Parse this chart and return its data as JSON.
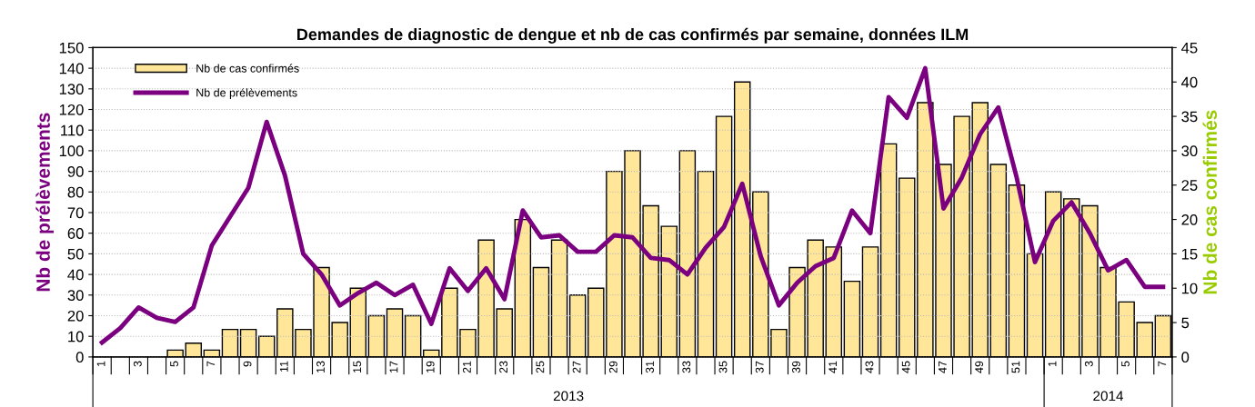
{
  "chart_data": {
    "type": "bar",
    "title": "Demandes de diagnostic de dengue et nb de cas confirmés par semaine, données ILM",
    "ylabel": "Nb de prélèvements",
    "y2label": "Nb de cas confirmés",
    "categories": [
      "1",
      null,
      "3",
      null,
      "5",
      null,
      "7",
      null,
      "9",
      null,
      "11",
      null,
      "13",
      null,
      "15",
      null,
      "17",
      null,
      "19",
      null,
      "21",
      null,
      "23",
      null,
      "25",
      null,
      "27",
      null,
      "29",
      null,
      "31",
      null,
      "33",
      null,
      "35",
      null,
      "37",
      null,
      "39",
      null,
      "41",
      null,
      "43",
      null,
      "45",
      null,
      "47",
      null,
      "49",
      null,
      "51",
      null,
      "1",
      null,
      "3",
      null,
      "5",
      null,
      "7"
    ],
    "series": [
      {
        "name": "Nb de cas confirmés",
        "axis": "y2",
        "color": "#ffe699",
        "values": [
          0,
          0,
          0,
          0,
          1,
          2,
          1,
          4,
          4,
          3,
          7,
          4,
          13,
          5,
          10,
          6,
          7,
          6,
          1,
          10,
          4,
          17,
          7,
          20,
          13,
          17,
          9,
          10,
          27,
          30,
          22,
          19,
          30,
          27,
          35,
          40,
          24,
          4,
          13,
          17,
          16,
          11,
          16,
          31,
          26,
          37,
          28,
          35,
          37,
          28,
          25,
          15,
          24,
          23,
          22,
          13,
          8,
          5,
          6
        ]
      },
      {
        "name": "Nb de prélèvements",
        "type": "line",
        "color": "#7b0080",
        "values": [
          7,
          14,
          24,
          19,
          17,
          24,
          54,
          68,
          82,
          114,
          88,
          50,
          40,
          25,
          31,
          36,
          30,
          35,
          16,
          43,
          32,
          43,
          28,
          71,
          58,
          59,
          51,
          51,
          59,
          58,
          48,
          47,
          40,
          53,
          63,
          84,
          49,
          25,
          36,
          44,
          48,
          71,
          60,
          126,
          116,
          140,
          72,
          87,
          108,
          121,
          87,
          46,
          66,
          75,
          60,
          42,
          47,
          34,
          34
        ]
      }
    ],
    "ylim": [
      0,
      150
    ],
    "yticks": [
      0,
      10,
      20,
      30,
      40,
      50,
      60,
      70,
      80,
      90,
      100,
      110,
      120,
      130,
      140,
      150
    ],
    "y2lim": [
      0,
      45
    ],
    "y2ticks": [
      0,
      5,
      10,
      15,
      20,
      25,
      30,
      35,
      40,
      45
    ],
    "grid": "y",
    "legend": "top left",
    "marker": "none",
    "line_style": "solid",
    "annotations": [
      "2013",
      "2014"
    ]
  }
}
